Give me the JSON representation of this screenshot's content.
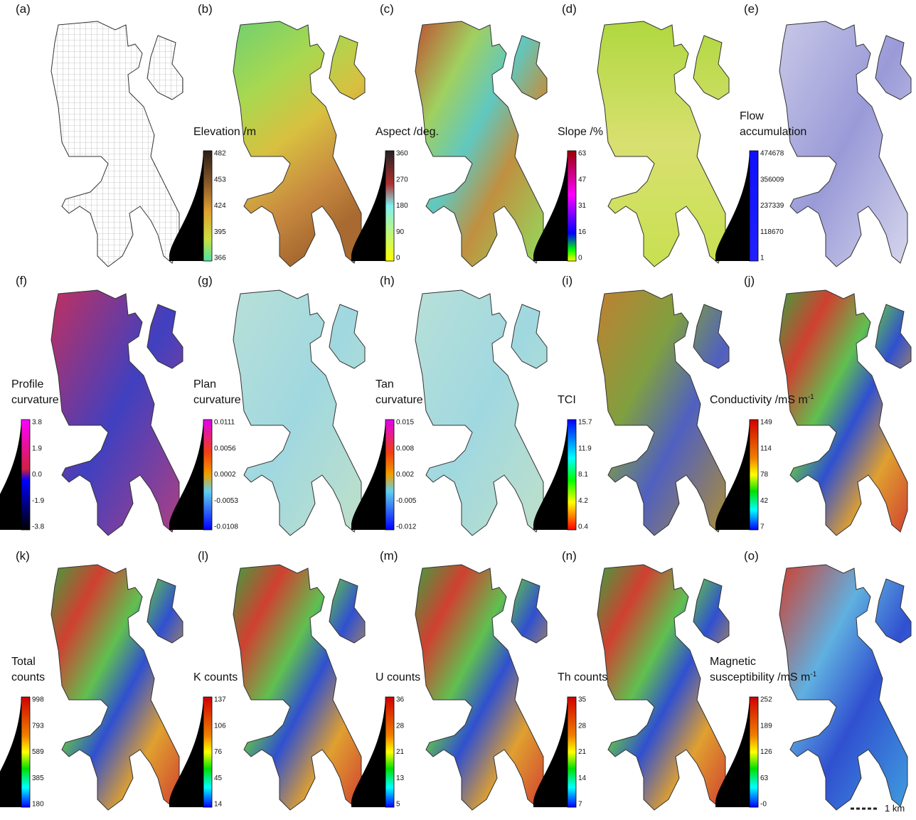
{
  "panels": [
    {
      "letter": "(a)"
    },
    {
      "letter": "(b)",
      "title": [
        "Elevation /m"
      ],
      "ticks": [
        "482",
        "453",
        "424",
        "395",
        "366"
      ]
    },
    {
      "letter": "(c)",
      "title": [
        "Aspect /deg."
      ],
      "ticks": [
        "360",
        "270",
        "180",
        "90",
        "0"
      ]
    },
    {
      "letter": "(d)",
      "title": [
        "Slope /%"
      ],
      "ticks": [
        "63",
        "47",
        "31",
        "16",
        "0"
      ]
    },
    {
      "letter": "(e)",
      "title": [
        "Flow",
        "accumulation"
      ],
      "ticks": [
        "474678",
        "356009",
        "237339",
        "118670",
        "1"
      ]
    },
    {
      "letter": "(f)",
      "title": [
        "Profile",
        "curvature"
      ],
      "ticks": [
        "3.8",
        "1.9",
        "0.0",
        "-1.9",
        "-3.8"
      ]
    },
    {
      "letter": "(g)",
      "title": [
        "Plan",
        "curvature"
      ],
      "ticks": [
        "0.0111",
        "0.0056",
        "0.0002",
        "-0.0053",
        "-0.0108"
      ]
    },
    {
      "letter": "(h)",
      "title": [
        "Tan",
        "curvature"
      ],
      "ticks": [
        "0.015",
        "0.008",
        "0.002",
        "-0.005",
        "-0.012"
      ]
    },
    {
      "letter": "(i)",
      "title": [
        "TCI"
      ],
      "ticks": [
        "15.7",
        "11.9",
        "8.1",
        "4.2",
        "0.4"
      ]
    },
    {
      "letter": "(j)",
      "title": [
        "Conductivity /mS m"
      ],
      "title_sup": "-1",
      "ticks": [
        "149",
        "114",
        "78",
        "42",
        "7"
      ]
    },
    {
      "letter": "(k)",
      "title": [
        "Total",
        "counts"
      ],
      "ticks": [
        "998",
        "793",
        "589",
        "385",
        "180"
      ]
    },
    {
      "letter": "(l)",
      "title": [
        "K counts"
      ],
      "ticks": [
        "137",
        "106",
        "76",
        "45",
        "14"
      ]
    },
    {
      "letter": "(m)",
      "title": [
        "U counts"
      ],
      "ticks": [
        "36",
        "28",
        "21",
        "13",
        "5"
      ]
    },
    {
      "letter": "(n)",
      "title": [
        "Th counts"
      ],
      "ticks": [
        "35",
        "28",
        "21",
        "14",
        "7"
      ]
    },
    {
      "letter": "(o)",
      "title": [
        "Magnetic",
        "susceptibility /mS m"
      ],
      "title_sup": "-1",
      "ticks": [
        "252",
        "189",
        "126",
        "63",
        "-0"
      ]
    }
  ],
  "scale_bar": "1 km"
}
